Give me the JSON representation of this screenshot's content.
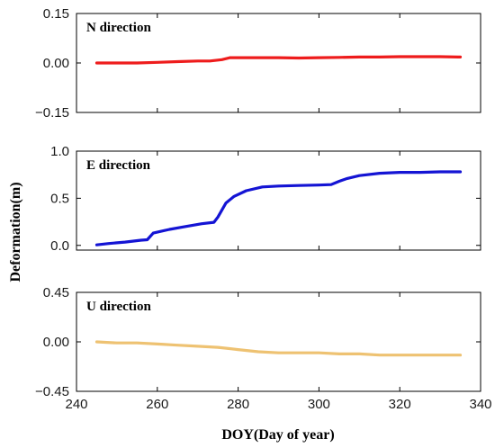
{
  "chart_data": {
    "type": "line",
    "xlabel": "DOY(Day of year)",
    "ylabel": "Deformation(m)",
    "xlim": [
      240,
      340
    ],
    "xticks": [
      "240",
      "260",
      "280",
      "300",
      "320",
      "340"
    ],
    "grid": false,
    "panels": [
      {
        "title": "N direction",
        "color": "#ee1c1c",
        "ylim": [
          -0.15,
          0.15
        ],
        "yticks": [
          {
            "v": 0.15,
            "label": "0.15"
          },
          {
            "v": 0.0,
            "label": "0.00"
          },
          {
            "v": -0.15,
            "label": "−0.15"
          }
        ],
        "series": {
          "x": [
            245,
            250,
            255,
            260,
            265,
            270,
            273,
            276,
            278,
            280,
            285,
            290,
            295,
            300,
            305,
            310,
            315,
            320,
            325,
            330,
            335
          ],
          "y": [
            0.0,
            0.0,
            0.0,
            0.002,
            0.004,
            0.006,
            0.006,
            0.01,
            0.016,
            0.016,
            0.016,
            0.016,
            0.015,
            0.016,
            0.017,
            0.018,
            0.018,
            0.019,
            0.019,
            0.019,
            0.018
          ]
        }
      },
      {
        "title": "E direction",
        "color": "#1414d4",
        "ylim": [
          -0.05,
          1.0
        ],
        "yticks": [
          {
            "v": 1.0,
            "label": "1.0"
          },
          {
            "v": 0.5,
            "label": "0.5"
          },
          {
            "v": 0.0,
            "label": "0.0"
          }
        ],
        "series": {
          "x": [
            245,
            248,
            252,
            256,
            257.5,
            259,
            263,
            267,
            271,
            274,
            275,
            277,
            279,
            282,
            286,
            290,
            295,
            300,
            303,
            305,
            307,
            310,
            315,
            320,
            325,
            330,
            335
          ],
          "y": [
            0.005,
            0.02,
            0.035,
            0.055,
            0.06,
            0.13,
            0.17,
            0.2,
            0.23,
            0.245,
            0.3,
            0.45,
            0.52,
            0.58,
            0.62,
            0.63,
            0.635,
            0.64,
            0.645,
            0.68,
            0.71,
            0.74,
            0.765,
            0.775,
            0.775,
            0.78,
            0.78
          ]
        }
      },
      {
        "title": "U direction",
        "color": "#eec272",
        "ylim": [
          -0.45,
          0.45
        ],
        "yticks": [
          {
            "v": 0.45,
            "label": "0.45"
          },
          {
            "v": 0.0,
            "label": "0.00"
          },
          {
            "v": -0.45,
            "label": "−0.45"
          }
        ],
        "series": {
          "x": [
            245,
            250,
            255,
            260,
            265,
            270,
            275,
            280,
            285,
            290,
            295,
            300,
            305,
            310,
            315,
            320,
            325,
            330,
            335
          ],
          "y": [
            0.0,
            -0.01,
            -0.01,
            -0.02,
            -0.03,
            -0.04,
            -0.05,
            -0.07,
            -0.09,
            -0.1,
            -0.1,
            -0.1,
            -0.11,
            -0.11,
            -0.12,
            -0.12,
            -0.12,
            -0.12,
            -0.12
          ]
        }
      }
    ]
  }
}
